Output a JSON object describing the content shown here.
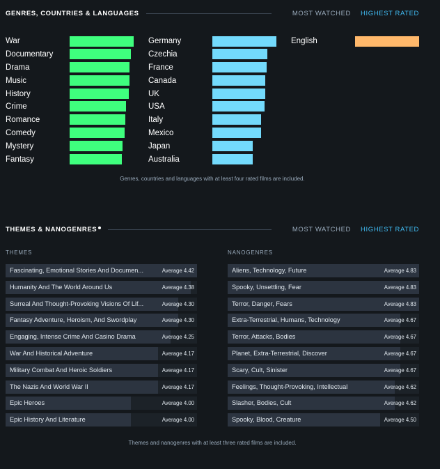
{
  "gcl": {
    "title": "GENRES, COUNTRIES & LANGUAGES",
    "tabs": [
      "MOST WATCHED",
      "HIGHEST RATED"
    ],
    "active_tab": 1,
    "genres": {
      "color": "#3fff7e",
      "items": [
        {
          "label": "War",
          "value": 1.0
        },
        {
          "label": "Documentary",
          "value": 0.96
        },
        {
          "label": "Drama",
          "value": 0.93
        },
        {
          "label": "Music",
          "value": 0.93
        },
        {
          "label": "History",
          "value": 0.92
        },
        {
          "label": "Crime",
          "value": 0.88
        },
        {
          "label": "Romance",
          "value": 0.87
        },
        {
          "label": "Comedy",
          "value": 0.86
        },
        {
          "label": "Mystery",
          "value": 0.83
        },
        {
          "label": "Fantasy",
          "value": 0.82
        }
      ]
    },
    "countries": {
      "color": "#73dafc",
      "items": [
        {
          "label": "Germany",
          "value": 1.0
        },
        {
          "label": "Czechia",
          "value": 0.86
        },
        {
          "label": "France",
          "value": 0.85
        },
        {
          "label": "Canada",
          "value": 0.83
        },
        {
          "label": "UK",
          "value": 0.83
        },
        {
          "label": "USA",
          "value": 0.81
        },
        {
          "label": "Italy",
          "value": 0.76
        },
        {
          "label": "Mexico",
          "value": 0.76
        },
        {
          "label": "Japan",
          "value": 0.63
        },
        {
          "label": "Australia",
          "value": 0.63
        }
      ]
    },
    "languages": {
      "color": "#ffb86b",
      "items": [
        {
          "label": "English",
          "value": 1.0
        }
      ]
    },
    "caption": "Genres, countries and languages with at least four rated films are included."
  },
  "themes_section": {
    "title": "THEMES & NANOGENRES",
    "tabs": [
      "MOST WATCHED",
      "HIGHEST RATED"
    ],
    "active_tab": 1,
    "themes": {
      "title": "THEMES",
      "items": [
        {
          "name": "Fascinating, Emotional Stories And Documen...",
          "avg": "Average 4.42",
          "value": 4.42
        },
        {
          "name": "Humanity And The World Around Us",
          "avg": "Average 4.38",
          "value": 4.38
        },
        {
          "name": "Surreal And Thought-Provoking Visions Of Lif...",
          "avg": "Average 4.30",
          "value": 4.3
        },
        {
          "name": "Fantasy Adventure, Heroism, And Swordplay",
          "avg": "Average 4.30",
          "value": 4.3
        },
        {
          "name": "Engaging, Intense Crime And Casino Drama",
          "avg": "Average 4.25",
          "value": 4.25
        },
        {
          "name": "War And Historical Adventure",
          "avg": "Average 4.17",
          "value": 4.17
        },
        {
          "name": "Military Combat And Heroic Soldiers",
          "avg": "Average 4.17",
          "value": 4.17
        },
        {
          "name": "The Nazis And World War II",
          "avg": "Average 4.17",
          "value": 4.17
        },
        {
          "name": "Epic Heroes",
          "avg": "Average 4.00",
          "value": 4.0
        },
        {
          "name": "Epic History And Literature",
          "avg": "Average 4.00",
          "value": 4.0
        }
      ]
    },
    "nanogenres": {
      "title": "NANOGENRES",
      "items": [
        {
          "name": "Aliens, Technology, Future",
          "avg": "Average 4.83",
          "value": 4.83
        },
        {
          "name": "Spooky, Unsettling, Fear",
          "avg": "Average 4.83",
          "value": 4.83
        },
        {
          "name": "Terror, Danger, Fears",
          "avg": "Average 4.83",
          "value": 4.83
        },
        {
          "name": "Extra-Terrestrial, Humans, Technology",
          "avg": "Average 4.67",
          "value": 4.67
        },
        {
          "name": "Terror, Attacks, Bodies",
          "avg": "Average 4.67",
          "value": 4.67
        },
        {
          "name": "Planet, Extra-Terrestrial, Discover",
          "avg": "Average 4.67",
          "value": 4.67
        },
        {
          "name": "Scary, Cult, Sinister",
          "avg": "Average 4.67",
          "value": 4.67
        },
        {
          "name": "Feelings, Thought-Provoking, Intellectual",
          "avg": "Average 4.62",
          "value": 4.62
        },
        {
          "name": "Slasher, Bodies, Cult",
          "avg": "Average 4.62",
          "value": 4.62
        },
        {
          "name": "Spooky, Blood, Creature",
          "avg": "Average 4.50",
          "value": 4.5
        }
      ]
    },
    "caption": "Themes and nanogenres with at least three rated films are included."
  }
}
